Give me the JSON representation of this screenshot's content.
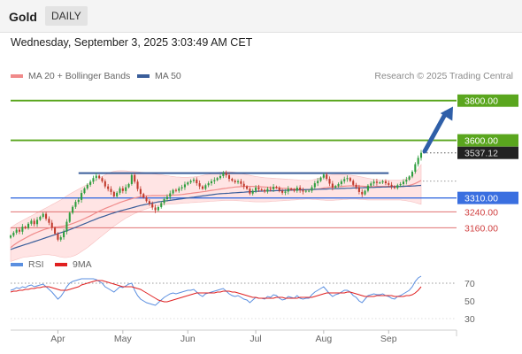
{
  "header": {
    "title": "Gold",
    "timeframe": "DAILY"
  },
  "datetime": "Wednesday, September 3, 2025 3:03:49 AM CET",
  "credit": "Research © 2025 Trading Central",
  "legend": {
    "ma20": "MA 20 + Bollinger Bands",
    "ma50": "MA 50",
    "rsi": "RSI",
    "ma9": "9MA"
  },
  "colors": {
    "candle_up": "#2e9e3e",
    "candle_down": "#c0392b",
    "resistance": "#5aa61e",
    "support": "#e07070",
    "pivot": "#3a6fe0",
    "ma20": "#f08a8a",
    "ma50": "#3a5e9a",
    "bollinger": "#ffe0e0",
    "rsi": "#5b8fe0",
    "ma9": "#e02020",
    "arrow": "#2f5fa8",
    "last_price_bg": "#222222"
  },
  "chart_data": [
    {
      "type": "candlestick",
      "x_ticks": [
        "Apr",
        "May",
        "Jun",
        "Jul",
        "Aug",
        "Sep"
      ],
      "ylim": [
        3050,
        3870
      ],
      "y_labels": [
        {
          "text": "3800.00",
          "value": 3800,
          "style": "resistance"
        },
        {
          "text": "3600.00",
          "value": 3600,
          "style": "resistance"
        },
        {
          "text": "3537.12",
          "value": 3537.12,
          "style": "last"
        },
        {
          "text": "3310.00",
          "value": 3310,
          "style": "pivot"
        },
        {
          "text": "3240.00",
          "value": 3240,
          "style": "support"
        },
        {
          "text": "3160.00",
          "value": 3160,
          "style": "support"
        }
      ],
      "levels": {
        "resistance": [
          3800,
          3600
        ],
        "pivot": 3310,
        "support": [
          3240,
          3160
        ],
        "last_price": 3537.12
      },
      "range_box": {
        "high": 3435,
        "low": 3310
      },
      "target_arrow": {
        "from": 3545,
        "to": 3770
      },
      "close": [
        3120,
        3135,
        3150,
        3140,
        3165,
        3158,
        3180,
        3195,
        3178,
        3200,
        3215,
        3230,
        3205,
        3185,
        3160,
        3130,
        3100,
        3112,
        3140,
        3190,
        3235,
        3265,
        3290,
        3300,
        3335,
        3358,
        3376,
        3392,
        3410,
        3422,
        3410,
        3394,
        3368,
        3355,
        3340,
        3318,
        3336,
        3358,
        3345,
        3364,
        3380,
        3425,
        3392,
        3355,
        3330,
        3312,
        3294,
        3280,
        3262,
        3248,
        3264,
        3284,
        3304,
        3316,
        3333,
        3350,
        3346,
        3358,
        3364,
        3378,
        3388,
        3396,
        3402,
        3384,
        3368,
        3356,
        3374,
        3384,
        3394,
        3400,
        3410,
        3420,
        3436,
        3424,
        3406,
        3397,
        3389,
        3394,
        3381,
        3368,
        3356,
        3332,
        3346,
        3362,
        3354,
        3350,
        3342,
        3356,
        3354,
        3366,
        3361,
        3346,
        3336,
        3342,
        3356,
        3352,
        3346,
        3362,
        3348,
        3342,
        3346,
        3346,
        3364,
        3384,
        3396,
        3412,
        3428,
        3406,
        3382,
        3362,
        3370,
        3380,
        3394,
        3405,
        3410,
        3396,
        3376,
        3364,
        3340,
        3328,
        3346,
        3372,
        3383,
        3392,
        3386,
        3388,
        3394,
        3384,
        3376,
        3368,
        3360,
        3374,
        3380,
        3392,
        3402,
        3418,
        3442,
        3480,
        3512,
        3537.12
      ],
      "ma20": [
        3060,
        3072,
        3082,
        3092,
        3100,
        3108,
        3116,
        3124,
        3131,
        3137,
        3143,
        3149,
        3154,
        3158,
        3162,
        3163,
        3164,
        3166,
        3168,
        3171,
        3176,
        3181,
        3187,
        3193,
        3199,
        3206,
        3213,
        3220,
        3228,
        3236,
        3243,
        3250,
        3257,
        3263,
        3269,
        3275,
        3281,
        3287,
        3292,
        3297,
        3302,
        3306,
        3310,
        3313,
        3316,
        3318,
        3320,
        3321,
        3322,
        3322,
        3322,
        3322,
        3322,
        3323,
        3323,
        3324,
        3325,
        3326,
        3327,
        3329,
        3331,
        3333,
        3335,
        3337,
        3339,
        3341,
        3343,
        3346,
        3348,
        3350,
        3352,
        3355,
        3357,
        3359,
        3361,
        3363,
        3365,
        3366,
        3367,
        3368,
        3368,
        3368,
        3368,
        3367,
        3367,
        3366,
        3365,
        3364,
        3363,
        3362,
        3361,
        3360,
        3359,
        3358,
        3357,
        3356,
        3355,
        3354,
        3353,
        3352,
        3351,
        3351,
        3352,
        3353,
        3355,
        3357,
        3360,
        3362,
        3364,
        3365,
        3366,
        3367,
        3368,
        3369,
        3370,
        3371,
        3371,
        3371,
        3370,
        3369,
        3368,
        3367,
        3367,
        3367,
        3368,
        3368,
        3368,
        3368,
        3368,
        3368,
        3367,
        3367,
        3367,
        3368,
        3370,
        3373,
        3377,
        3383,
        3390,
        3398
      ],
      "bollinger_upper": [
        3160,
        3170,
        3180,
        3188,
        3196,
        3204,
        3212,
        3220,
        3228,
        3236,
        3244,
        3252,
        3260,
        3268,
        3276,
        3284,
        3292,
        3300,
        3310,
        3320,
        3330,
        3338,
        3346,
        3354,
        3362,
        3370,
        3378,
        3386,
        3394,
        3402,
        3410,
        3418,
        3426,
        3434,
        3440,
        3444,
        3446,
        3447,
        3447,
        3446,
        3445,
        3444,
        3443,
        3442,
        3440,
        3438,
        3436,
        3434,
        3432,
        3430,
        3428,
        3426,
        3424,
        3422,
        3420,
        3418,
        3416,
        3415,
        3414,
        3414,
        3414,
        3415,
        3416,
        3418,
        3420,
        3423,
        3426,
        3429,
        3432,
        3435,
        3438,
        3440,
        3441,
        3442,
        3442,
        3441,
        3439,
        3436,
        3433,
        3430,
        3427,
        3424,
        3421,
        3418,
        3416,
        3414,
        3412,
        3411,
        3410,
        3409,
        3408,
        3407,
        3406,
        3405,
        3404,
        3403,
        3402,
        3401,
        3400,
        3399,
        3398,
        3398,
        3400,
        3404,
        3408,
        3413,
        3418,
        3422,
        3425,
        3427,
        3428,
        3428,
        3428,
        3427,
        3426,
        3425,
        3423,
        3421,
        3418,
        3415,
        3412,
        3409,
        3406,
        3404,
        3402,
        3401,
        3400,
        3400,
        3400,
        3400,
        3400,
        3400,
        3400,
        3402,
        3406,
        3414,
        3424,
        3438,
        3456,
        3478
      ],
      "bollinger_lower": [
        2990,
        2995,
        3000,
        3005,
        3010,
        3012,
        3014,
        3016,
        3018,
        3020,
        3022,
        3024,
        3024,
        3024,
        3022,
        3020,
        3016,
        3012,
        3010,
        3010,
        3012,
        3016,
        3022,
        3030,
        3040,
        3050,
        3060,
        3072,
        3084,
        3096,
        3108,
        3120,
        3132,
        3144,
        3156,
        3168,
        3178,
        3188,
        3198,
        3208,
        3216,
        3224,
        3232,
        3238,
        3244,
        3250,
        3255,
        3260,
        3264,
        3268,
        3271,
        3274,
        3276,
        3278,
        3279,
        3280,
        3281,
        3282,
        3283,
        3284,
        3285,
        3286,
        3287,
        3288,
        3289,
        3290,
        3291,
        3292,
        3293,
        3294,
        3295,
        3296,
        3297,
        3298,
        3298,
        3298,
        3297,
        3296,
        3295,
        3294,
        3293,
        3292,
        3291,
        3290,
        3290,
        3290,
        3290,
        3291,
        3292,
        3293,
        3294,
        3295,
        3296,
        3297,
        3298,
        3299,
        3300,
        3301,
        3302,
        3303,
        3304,
        3304,
        3303,
        3302,
        3301,
        3300,
        3299,
        3298,
        3298,
        3298,
        3299,
        3300,
        3301,
        3302,
        3303,
        3304,
        3304,
        3304,
        3303,
        3302,
        3301,
        3300,
        3300,
        3300,
        3300,
        3300,
        3300,
        3300,
        3300,
        3300,
        3300,
        3300,
        3300,
        3298,
        3296,
        3293,
        3290,
        3286,
        3282,
        3278
      ],
      "ma50": [
        3050,
        3056,
        3061,
        3066,
        3071,
        3076,
        3080,
        3085,
        3090,
        3095,
        3100,
        3105,
        3110,
        3115,
        3120,
        3125,
        3130,
        3135,
        3140,
        3145,
        3150,
        3156,
        3162,
        3168,
        3174,
        3180,
        3186,
        3192,
        3198,
        3204,
        3210,
        3215,
        3220,
        3225,
        3230,
        3235,
        3240,
        3244,
        3248,
        3252,
        3256,
        3260,
        3264,
        3268,
        3272,
        3275,
        3278,
        3281,
        3284,
        3287,
        3290,
        3292,
        3294,
        3296,
        3298,
        3300,
        3302,
        3304,
        3306,
        3308,
        3310,
        3312,
        3314,
        3316,
        3318,
        3320,
        3322,
        3324,
        3326,
        3328,
        3330,
        3331,
        3332,
        3333,
        3334,
        3335,
        3336,
        3337,
        3338,
        3339,
        3340,
        3341,
        3342,
        3343,
        3344,
        3344,
        3345,
        3345,
        3346,
        3346,
        3347,
        3347,
        3348,
        3348,
        3349,
        3349,
        3350,
        3350,
        3351,
        3351,
        3352,
        3352,
        3353,
        3353,
        3354,
        3354,
        3355,
        3355,
        3356,
        3356,
        3357,
        3357,
        3358,
        3358,
        3359,
        3359,
        3360,
        3360,
        3361,
        3361,
        3362,
        3362,
        3363,
        3363,
        3364,
        3364,
        3365,
        3365,
        3366,
        3366,
        3367,
        3367,
        3368,
        3368,
        3369,
        3369,
        3370,
        3371,
        3372,
        3373
      ]
    },
    {
      "type": "line",
      "y_ticks": [
        70,
        50,
        30
      ],
      "ylim": [
        20,
        80
      ],
      "series": [
        {
          "name": "RSI",
          "color": "#5b8fe0",
          "values": [
            62,
            63,
            65,
            64,
            66,
            65,
            67,
            68,
            66,
            67,
            68,
            69,
            66,
            63,
            60,
            56,
            52,
            55,
            60,
            66,
            70,
            72,
            73,
            74,
            75,
            75,
            75,
            75,
            75,
            74,
            72,
            70,
            66,
            64,
            62,
            60,
            63,
            66,
            65,
            67,
            69,
            70,
            62,
            56,
            52,
            50,
            48,
            47,
            46,
            45,
            48,
            51,
            54,
            56,
            58,
            59,
            58,
            59,
            60,
            61,
            62,
            62,
            63,
            60,
            57,
            55,
            58,
            59,
            60,
            61,
            62,
            63,
            64,
            61,
            58,
            56,
            55,
            56,
            54,
            52,
            51,
            48,
            51,
            54,
            53,
            53,
            52,
            55,
            54,
            57,
            56,
            53,
            51,
            52,
            55,
            54,
            53,
            56,
            53,
            52,
            53,
            53,
            57,
            60,
            62,
            64,
            66,
            62,
            58,
            55,
            57,
            58,
            60,
            62,
            62,
            60,
            56,
            54,
            50,
            48,
            52,
            56,
            57,
            58,
            57,
            57,
            58,
            56,
            55,
            53,
            52,
            55,
            56,
            58,
            60,
            62,
            66,
            72,
            76,
            78
          ]
        },
        {
          "name": "9MA",
          "color": "#e02020",
          "values": [
            60,
            61,
            61,
            62,
            62,
            63,
            63,
            64,
            64,
            65,
            65,
            66,
            66,
            66,
            65,
            64,
            63,
            62,
            62,
            62,
            63,
            64,
            65,
            66,
            68,
            69,
            70,
            71,
            72,
            73,
            73,
            73,
            72,
            71,
            70,
            69,
            68,
            67,
            66,
            66,
            66,
            66,
            65,
            64,
            63,
            61,
            59,
            57,
            55,
            53,
            51,
            50,
            49,
            49,
            50,
            51,
            52,
            53,
            54,
            55,
            56,
            57,
            58,
            59,
            59,
            59,
            59,
            59,
            59,
            59,
            60,
            60,
            61,
            61,
            61,
            60,
            60,
            59,
            58,
            57,
            56,
            55,
            54,
            54,
            53,
            53,
            53,
            53,
            53,
            53,
            54,
            54,
            54,
            53,
            53,
            53,
            53,
            53,
            54,
            54,
            54,
            54,
            54,
            55,
            56,
            57,
            58,
            59,
            59,
            59,
            59,
            59,
            59,
            59,
            60,
            60,
            59,
            58,
            57,
            56,
            55,
            55,
            55,
            55,
            56,
            56,
            56,
            56,
            56,
            56,
            55,
            55,
            55,
            55,
            56,
            56,
            57,
            59,
            62,
            66
          ]
        }
      ]
    }
  ]
}
